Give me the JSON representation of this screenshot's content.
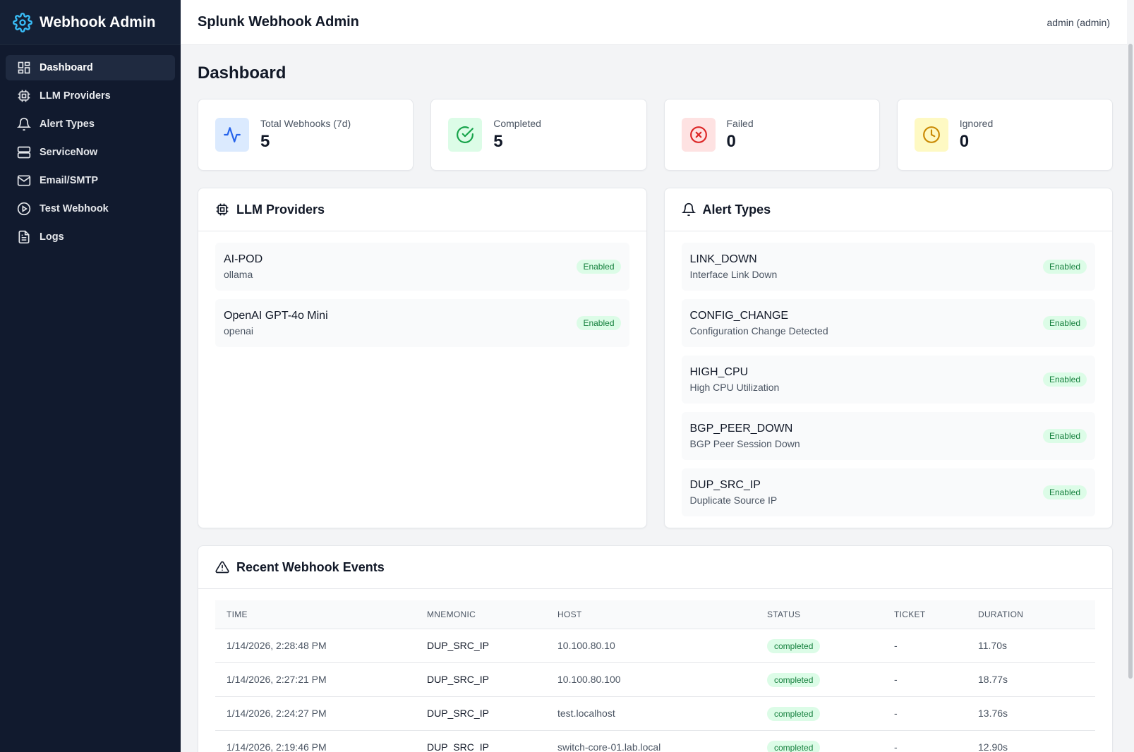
{
  "sidebar": {
    "brand": "Webhook Admin",
    "items": [
      {
        "label": "Dashboard",
        "icon": "dashboard-icon"
      },
      {
        "label": "LLM Providers",
        "icon": "cpu-icon"
      },
      {
        "label": "Alert Types",
        "icon": "bell-icon"
      },
      {
        "label": "ServiceNow",
        "icon": "server-icon"
      },
      {
        "label": "Email/SMTP",
        "icon": "mail-icon"
      },
      {
        "label": "Test Webhook",
        "icon": "play-circle-icon"
      },
      {
        "label": "Logs",
        "icon": "file-text-icon"
      }
    ]
  },
  "header": {
    "title": "Splunk Webhook Admin",
    "user": "admin (admin)"
  },
  "page": {
    "title": "Dashboard"
  },
  "stats": [
    {
      "label": "Total Webhooks (7d)",
      "value": "5",
      "icon": "activity-icon",
      "color": "#2563eb",
      "bg": "#dbeafe"
    },
    {
      "label": "Completed",
      "value": "5",
      "icon": "check-circle-icon",
      "color": "#16a34a",
      "bg": "#dcfce7"
    },
    {
      "label": "Failed",
      "value": "0",
      "icon": "x-circle-icon",
      "color": "#dc2626",
      "bg": "#fee2e2"
    },
    {
      "label": "Ignored",
      "value": "0",
      "icon": "clock-icon",
      "color": "#ca8a04",
      "bg": "#fef9c3"
    }
  ],
  "llm_providers": {
    "title": "LLM Providers",
    "items": [
      {
        "name": "AI-POD",
        "type": "ollama",
        "status": "Enabled"
      },
      {
        "name": "OpenAI GPT-4o Mini",
        "type": "openai",
        "status": "Enabled"
      }
    ]
  },
  "alert_types": {
    "title": "Alert Types",
    "items": [
      {
        "name": "LINK_DOWN",
        "desc": "Interface Link Down",
        "status": "Enabled"
      },
      {
        "name": "CONFIG_CHANGE",
        "desc": "Configuration Change Detected",
        "status": "Enabled"
      },
      {
        "name": "HIGH_CPU",
        "desc": "High CPU Utilization",
        "status": "Enabled"
      },
      {
        "name": "BGP_PEER_DOWN",
        "desc": "BGP Peer Session Down",
        "status": "Enabled"
      },
      {
        "name": "DUP_SRC_IP",
        "desc": "Duplicate Source IP",
        "status": "Enabled"
      }
    ]
  },
  "events": {
    "title": "Recent Webhook Events",
    "columns": [
      "TIME",
      "MNEMONIC",
      "HOST",
      "STATUS",
      "TICKET",
      "DURATION"
    ],
    "rows": [
      {
        "time": "1/14/2026, 2:28:48 PM",
        "mnemonic": "DUP_SRC_IP",
        "host": "10.100.80.10",
        "status": "completed",
        "ticket": "-",
        "duration": "11.70s"
      },
      {
        "time": "1/14/2026, 2:27:21 PM",
        "mnemonic": "DUP_SRC_IP",
        "host": "10.100.80.100",
        "status": "completed",
        "ticket": "-",
        "duration": "18.77s"
      },
      {
        "time": "1/14/2026, 2:24:27 PM",
        "mnemonic": "DUP_SRC_IP",
        "host": "test.localhost",
        "status": "completed",
        "ticket": "-",
        "duration": "13.76s"
      },
      {
        "time": "1/14/2026, 2:19:46 PM",
        "mnemonic": "DUP_SRC_IP",
        "host": "switch-core-01.lab.local",
        "status": "completed",
        "ticket": "-",
        "duration": "12.90s"
      }
    ]
  }
}
